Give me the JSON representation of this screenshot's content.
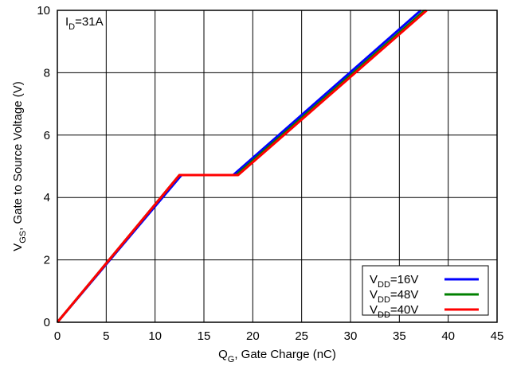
{
  "chart_data": {
    "type": "line",
    "xlabel": {
      "main": "Q",
      "sub": "G",
      "rest": ", Gate Charge (nC)"
    },
    "ylabel": {
      "main": "V",
      "sub": "GS",
      "rest": ", Gate to Source Voltage (V)"
    },
    "xlim": [
      0,
      45
    ],
    "ylim": [
      0,
      10
    ],
    "xticks": [
      "0",
      "5",
      "10",
      "15",
      "20",
      "25",
      "30",
      "35",
      "40",
      "45"
    ],
    "yticks": [
      "0",
      "2",
      "4",
      "6",
      "8",
      "10"
    ],
    "grid": true,
    "legend_position": "bottom-right",
    "annotation": {
      "main": "I",
      "sub": "D",
      "rest": "=31A"
    },
    "series": [
      {
        "name": "16V",
        "label_main": "V",
        "label_sub": "DD",
        "label_rest": "=16V",
        "color": "#0000ff",
        "x": [
          0,
          12.7,
          18.0,
          37.2
        ],
        "y": [
          0,
          4.72,
          4.72,
          10
        ]
      },
      {
        "name": "48V",
        "label_main": "V",
        "label_sub": "DD",
        "label_rest": "=48V",
        "color": "#008000",
        "x": [
          0,
          12.5,
          18.3,
          37.6
        ],
        "y": [
          0,
          4.72,
          4.72,
          10
        ]
      },
      {
        "name": "40V",
        "label_main": "V",
        "label_sub": "DD",
        "label_rest": "=40V",
        "color": "#ff0000",
        "x": [
          0,
          12.5,
          18.5,
          37.8
        ],
        "y": [
          0,
          4.72,
          4.72,
          10
        ]
      }
    ]
  }
}
